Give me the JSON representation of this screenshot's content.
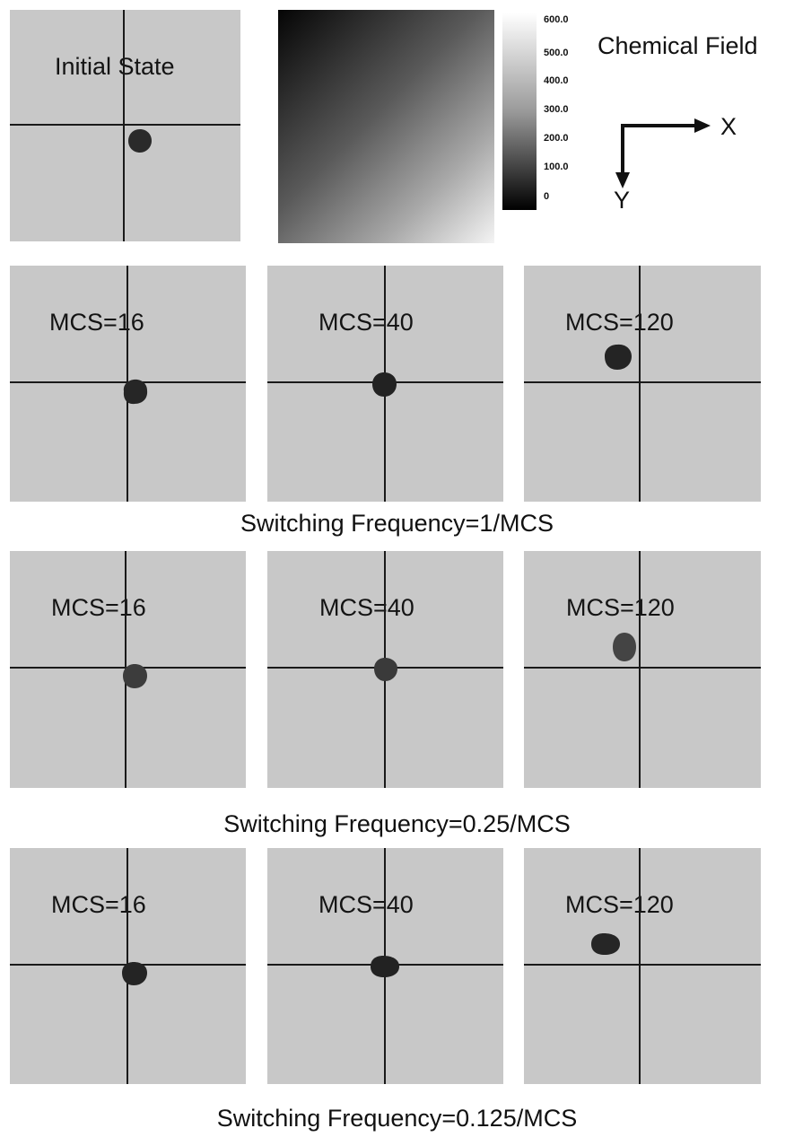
{
  "initial_panel": {
    "label": "Initial State"
  },
  "chemical_field": {
    "title": "Chemical Field",
    "ticks": [
      "600.0",
      "500.0",
      "400.0",
      "300.0",
      "200.0",
      "100.0",
      "0"
    ]
  },
  "axes": {
    "x": "X",
    "y": "Y"
  },
  "rows": [
    {
      "caption": "Switching Frequency=1/MCS",
      "panels": [
        {
          "label": "MCS=16"
        },
        {
          "label": "MCS=40"
        },
        {
          "label": "MCS=120"
        }
      ]
    },
    {
      "caption": "Switching Frequency=0.25/MCS",
      "panels": [
        {
          "label": "MCS=16"
        },
        {
          "label": "MCS=40"
        },
        {
          "label": "MCS=120"
        }
      ]
    },
    {
      "caption": "Switching Frequency=0.125/MCS",
      "panels": [
        {
          "label": "MCS=16"
        },
        {
          "label": "MCS=40"
        },
        {
          "label": "MCS=120"
        }
      ]
    }
  ]
}
